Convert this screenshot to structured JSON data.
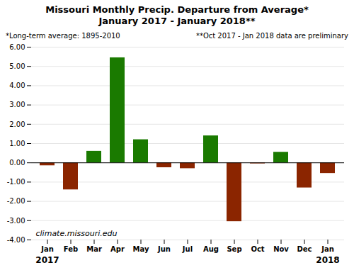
{
  "chart_data": {
    "type": "bar",
    "title": "Missouri Monthly Precip. Departure from Average*",
    "subtitle": "January 2017 - January 2018**",
    "notes": [
      "*Long-term average: 1895-2010",
      "**Oct 2017 - Jan 2018 data are preliminary"
    ],
    "annotations": [
      "climate.missouri.edu",
      "2017",
      "2018"
    ],
    "categories": [
      "Jan",
      "Feb",
      "Mar",
      "Apr",
      "May",
      "Jun",
      "Jul",
      "Aug",
      "Sep",
      "Oct",
      "Nov",
      "Dec",
      "Jan"
    ],
    "values": [
      -0.15,
      -1.4,
      0.6,
      5.45,
      1.2,
      -0.25,
      -0.3,
      1.4,
      -3.05,
      -0.05,
      0.55,
      -1.3,
      -0.55
    ],
    "colors": [
      "#8B2500",
      "#8B2500",
      "#1a7a00",
      "#1a7a00",
      "#1a7a00",
      "#8B2500",
      "#8B2500",
      "#1a7a00",
      "#8B2500",
      "#8B2500",
      "#1a7a00",
      "#8B2500",
      "#8B2500"
    ],
    "ylim": [
      -4.0,
      6.0
    ],
    "yticks": [
      {
        "value": -4.0,
        "label": "-4.00"
      },
      {
        "value": -3.0,
        "label": "-3.00"
      },
      {
        "value": -2.0,
        "label": "-2.00"
      },
      {
        "value": -1.0,
        "label": "-1.00"
      },
      {
        "value": 0.0,
        "label": "0.00"
      },
      {
        "value": 1.0,
        "label": "1.00"
      },
      {
        "value": 2.0,
        "label": "2.00"
      },
      {
        "value": 3.0,
        "label": "3.00"
      },
      {
        "value": 4.0,
        "label": "4.00"
      },
      {
        "value": 5.0,
        "label": "5.00"
      },
      {
        "value": 6.0,
        "label": "6.00"
      }
    ],
    "grid": true
  }
}
